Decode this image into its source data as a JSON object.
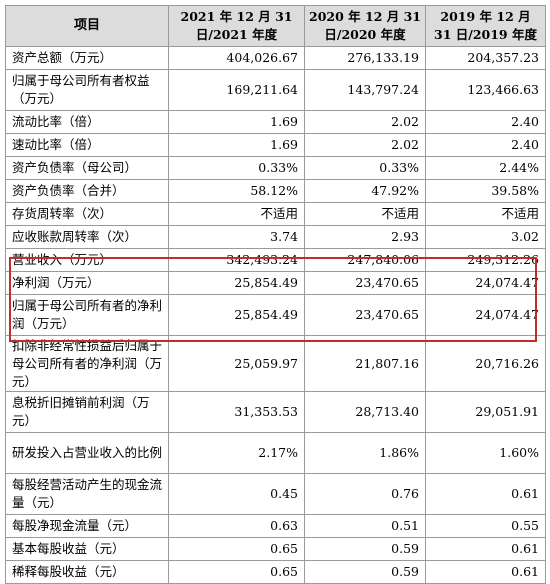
{
  "table": {
    "headers": [
      "项目",
      "2021 年 12 月 31 日/2021 年度",
      "2020 年 12 月 31 日/2020 年度",
      "2019 年 12 月 31 日/2019 年度"
    ],
    "rows": [
      {
        "label": "资产总额（万元）",
        "values": [
          "404,026.67",
          "276,133.19",
          "204,357.23"
        ]
      },
      {
        "label": "归属于母公司所有者权益（万元）",
        "values": [
          "169,211.64",
          "143,797.24",
          "123,466.63"
        ]
      },
      {
        "label": "流动比率（倍）",
        "values": [
          "1.69",
          "2.02",
          "2.40"
        ]
      },
      {
        "label": "速动比率（倍）",
        "values": [
          "1.69",
          "2.02",
          "2.40"
        ]
      },
      {
        "label": "资产负债率（母公司）",
        "values": [
          "0.33%",
          "0.33%",
          "2.44%"
        ]
      },
      {
        "label": "资产负债率（合并）",
        "values": [
          "58.12%",
          "47.92%",
          "39.58%"
        ]
      },
      {
        "label": "存货周转率（次）",
        "values": [
          "不适用",
          "不适用",
          "不适用"
        ]
      },
      {
        "label": "应收账款周转率（次）",
        "values": [
          "3.74",
          "2.93",
          "3.02"
        ]
      },
      {
        "label": "营业收入（万元）",
        "values": [
          "342,493.24",
          "247,840.06",
          "249,312.26"
        ]
      },
      {
        "label": "净利润（万元）",
        "values": [
          "25,854.49",
          "23,470.65",
          "24,074.47"
        ]
      },
      {
        "label": "归属于母公司所有者的净利润（万元）",
        "values": [
          "25,854.49",
          "23,470.65",
          "24,074.47"
        ]
      },
      {
        "label": "扣除非经常性损益后归属于母公司所有者的净利润（万元）",
        "values": [
          "25,059.97",
          "21,807.16",
          "20,716.26"
        ]
      },
      {
        "label": "息税折旧摊销前利润（万元）",
        "values": [
          "31,353.53",
          "28,713.40",
          "29,051.91"
        ]
      },
      {
        "label": "研发投入占营业收入的比例",
        "values": [
          "2.17%",
          "1.86%",
          "1.60%"
        ]
      },
      {
        "label": "每股经营活动产生的现金流量（元）",
        "values": [
          "0.45",
          "0.76",
          "0.61"
        ]
      },
      {
        "label": "每股净现金流量（元）",
        "values": [
          "0.63",
          "0.51",
          "0.55"
        ]
      },
      {
        "label": "基本每股收益（元）",
        "values": [
          "0.65",
          "0.59",
          "0.61"
        ]
      },
      {
        "label": "稀释每股收益（元）",
        "values": [
          "0.65",
          "0.59",
          "0.61"
        ]
      }
    ]
  },
  "highlight_color": "#c42b2b"
}
